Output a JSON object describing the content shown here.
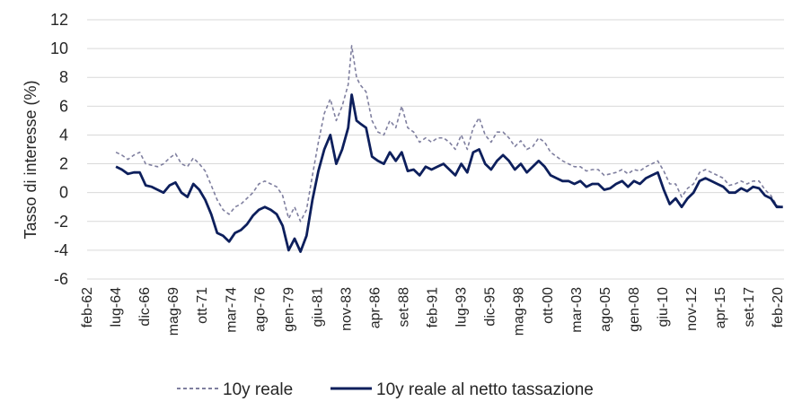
{
  "chart_data": {
    "type": "line",
    "title": "",
    "xlabel": "",
    "ylabel": "Tasso di interesse (%)",
    "ylim": [
      -6,
      12
    ],
    "yticks": [
      -6,
      -4,
      -2,
      0,
      2,
      4,
      6,
      8,
      10,
      12
    ],
    "grid": true,
    "legend_position": "bottom",
    "x_range": [
      1962.08,
      2020.6
    ],
    "x_tick_labels": [
      {
        "label": "feb-62",
        "t": 1962.08
      },
      {
        "label": "lug-64",
        "t": 1964.5
      },
      {
        "label": "dic-66",
        "t": 1966.92
      },
      {
        "label": "mag-69",
        "t": 1969.33
      },
      {
        "label": "ott-71",
        "t": 1971.75
      },
      {
        "label": "mar-74",
        "t": 1974.17
      },
      {
        "label": "ago-76",
        "t": 1976.58
      },
      {
        "label": "gen-79",
        "t": 1979.0
      },
      {
        "label": "giu-81",
        "t": 1981.42
      },
      {
        "label": "nov-83",
        "t": 1983.83
      },
      {
        "label": "apr-86",
        "t": 1986.25
      },
      {
        "label": "set-88",
        "t": 1988.67
      },
      {
        "label": "feb-91",
        "t": 1991.08
      },
      {
        "label": "lug-93",
        "t": 1993.5
      },
      {
        "label": "dic-95",
        "t": 1995.92
      },
      {
        "label": "mag-98",
        "t": 1998.33
      },
      {
        "label": "ott-00",
        "t": 2000.75
      },
      {
        "label": "mar-03",
        "t": 2003.17
      },
      {
        "label": "ago-05",
        "t": 2005.58
      },
      {
        "label": "gen-08",
        "t": 2008.0
      },
      {
        "label": "giu-10",
        "t": 2010.42
      },
      {
        "label": "nov-12",
        "t": 2012.83
      },
      {
        "label": "apr-15",
        "t": 2015.25
      },
      {
        "label": "set-17",
        "t": 2017.67
      },
      {
        "label": "feb-20",
        "t": 2020.08
      }
    ],
    "series": [
      {
        "name": "10y reale",
        "color": "#7f7f9f",
        "style": "dashed",
        "x": [
          1964.5,
          1965.0,
          1965.5,
          1966.0,
          1966.5,
          1967.0,
          1967.5,
          1968.0,
          1968.5,
          1969.0,
          1969.5,
          1970.0,
          1970.5,
          1971.0,
          1971.5,
          1972.0,
          1972.5,
          1973.0,
          1973.5,
          1974.0,
          1974.5,
          1975.0,
          1975.5,
          1976.0,
          1976.5,
          1977.0,
          1977.5,
          1978.0,
          1978.5,
          1979.0,
          1979.5,
          1980.0,
          1980.5,
          1981.0,
          1981.5,
          1982.0,
          1982.5,
          1983.0,
          1983.5,
          1984.0,
          1984.3,
          1984.7,
          1985.0,
          1985.5,
          1986.0,
          1986.5,
          1987.0,
          1987.5,
          1988.0,
          1988.5,
          1989.0,
          1989.5,
          1990.0,
          1990.5,
          1991.0,
          1991.5,
          1992.0,
          1992.5,
          1993.0,
          1993.5,
          1994.0,
          1994.5,
          1995.0,
          1995.5,
          1996.0,
          1996.5,
          1997.0,
          1997.5,
          1998.0,
          1998.5,
          1999.0,
          1999.5,
          2000.0,
          2000.5,
          2001.0,
          2001.5,
          2002.0,
          2002.5,
          2003.0,
          2003.5,
          2004.0,
          2004.5,
          2005.0,
          2005.5,
          2006.0,
          2006.5,
          2007.0,
          2007.5,
          2008.0,
          2008.5,
          2009.0,
          2009.5,
          2010.0,
          2010.5,
          2011.0,
          2011.5,
          2012.0,
          2012.5,
          2013.0,
          2013.5,
          2014.0,
          2014.5,
          2015.0,
          2015.5,
          2016.0,
          2016.5,
          2017.0,
          2017.5,
          2018.0,
          2018.5,
          2019.0,
          2019.5,
          2020.0,
          2020.5
        ],
        "values": [
          2.8,
          2.6,
          2.3,
          2.6,
          2.8,
          2.0,
          1.9,
          1.8,
          2.0,
          2.4,
          2.7,
          2.0,
          1.8,
          2.4,
          2.0,
          1.5,
          0.5,
          -0.5,
          -1.2,
          -1.5,
          -1.0,
          -0.8,
          -0.4,
          0.0,
          0.6,
          0.8,
          0.6,
          0.4,
          -0.2,
          -1.8,
          -1.0,
          -2.0,
          -1.2,
          1.2,
          3.5,
          5.5,
          6.5,
          5.0,
          6.0,
          7.5,
          10.2,
          8.0,
          7.5,
          7.0,
          5.0,
          4.2,
          4.0,
          5.0,
          4.5,
          6.0,
          4.5,
          4.2,
          3.5,
          3.8,
          3.5,
          3.8,
          3.8,
          3.5,
          3.0,
          4.0,
          3.0,
          4.5,
          5.2,
          4.0,
          3.5,
          4.2,
          4.2,
          3.8,
          3.2,
          3.6,
          3.0,
          3.2,
          3.8,
          3.5,
          2.8,
          2.5,
          2.2,
          2.0,
          1.8,
          1.8,
          1.5,
          1.6,
          1.6,
          1.2,
          1.3,
          1.4,
          1.6,
          1.3,
          1.6,
          1.5,
          1.8,
          2.0,
          2.2,
          1.5,
          0.6,
          0.6,
          -0.3,
          0.3,
          0.6,
          1.4,
          1.6,
          1.4,
          1.2,
          1.0,
          0.5,
          0.6,
          0.8,
          0.6,
          0.8,
          0.8,
          0.2,
          -0.2,
          -0.9,
          -1.0
        ]
      },
      {
        "name": "10y reale al netto tassazione",
        "color": "#0d1f5c",
        "style": "solid",
        "x": [
          1964.5,
          1965.0,
          1965.5,
          1966.0,
          1966.5,
          1967.0,
          1967.5,
          1968.0,
          1968.5,
          1969.0,
          1969.5,
          1970.0,
          1970.5,
          1971.0,
          1971.5,
          1972.0,
          1972.5,
          1973.0,
          1973.5,
          1974.0,
          1974.5,
          1975.0,
          1975.5,
          1976.0,
          1976.5,
          1977.0,
          1977.5,
          1978.0,
          1978.5,
          1979.0,
          1979.5,
          1980.0,
          1980.5,
          1981.0,
          1981.5,
          1982.0,
          1982.5,
          1983.0,
          1983.5,
          1984.0,
          1984.3,
          1984.7,
          1985.0,
          1985.5,
          1986.0,
          1986.5,
          1987.0,
          1987.5,
          1988.0,
          1988.5,
          1989.0,
          1989.5,
          1990.0,
          1990.5,
          1991.0,
          1991.5,
          1992.0,
          1992.5,
          1993.0,
          1993.5,
          1994.0,
          1994.5,
          1995.0,
          1995.5,
          1996.0,
          1996.5,
          1997.0,
          1997.5,
          1998.0,
          1998.5,
          1999.0,
          1999.5,
          2000.0,
          2000.5,
          2001.0,
          2001.5,
          2002.0,
          2002.5,
          2003.0,
          2003.5,
          2004.0,
          2004.5,
          2005.0,
          2005.5,
          2006.0,
          2006.5,
          2007.0,
          2007.5,
          2008.0,
          2008.5,
          2009.0,
          2009.5,
          2010.0,
          2010.5,
          2011.0,
          2011.5,
          2012.0,
          2012.5,
          2013.0,
          2013.5,
          2014.0,
          2014.5,
          2015.0,
          2015.5,
          2016.0,
          2016.5,
          2017.0,
          2017.5,
          2018.0,
          2018.5,
          2019.0,
          2019.5,
          2020.0,
          2020.5
        ],
        "values": [
          1.8,
          1.6,
          1.3,
          1.4,
          1.4,
          0.5,
          0.4,
          0.2,
          0.0,
          0.5,
          0.7,
          0.0,
          -0.3,
          0.6,
          0.2,
          -0.5,
          -1.5,
          -2.8,
          -3.0,
          -3.4,
          -2.8,
          -2.6,
          -2.2,
          -1.6,
          -1.2,
          -1.0,
          -1.2,
          -1.5,
          -2.3,
          -4.0,
          -3.2,
          -4.1,
          -3.0,
          -0.5,
          1.5,
          3.0,
          4.0,
          2.0,
          3.0,
          4.5,
          6.8,
          5.0,
          4.8,
          4.5,
          2.5,
          2.2,
          2.0,
          2.8,
          2.2,
          2.8,
          1.5,
          1.6,
          1.2,
          1.8,
          1.6,
          1.8,
          2.0,
          1.6,
          1.2,
          2.0,
          1.4,
          2.8,
          3.0,
          2.0,
          1.6,
          2.2,
          2.6,
          2.2,
          1.6,
          2.0,
          1.4,
          1.8,
          2.2,
          1.8,
          1.2,
          1.0,
          0.8,
          0.8,
          0.6,
          0.8,
          0.4,
          0.6,
          0.6,
          0.2,
          0.3,
          0.6,
          0.8,
          0.4,
          0.8,
          0.6,
          1.0,
          1.2,
          1.4,
          0.2,
          -0.8,
          -0.4,
          -1.0,
          -0.4,
          0.0,
          0.8,
          1.0,
          0.8,
          0.6,
          0.4,
          0.0,
          0.0,
          0.3,
          0.1,
          0.4,
          0.3,
          -0.2,
          -0.4,
          -1.0,
          -1.0
        ]
      }
    ]
  }
}
